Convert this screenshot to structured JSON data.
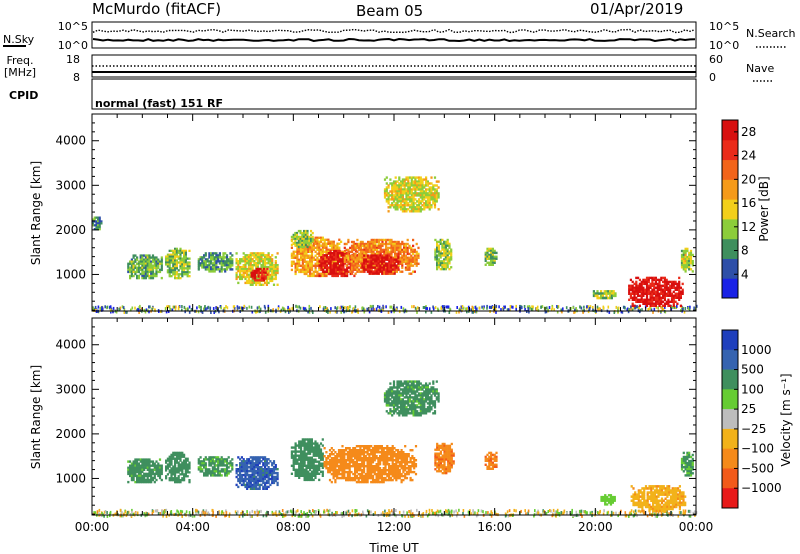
{
  "header": {
    "station": "McMurdo (fitACF)",
    "beam": "Beam 05",
    "date": "01/Apr/2019"
  },
  "top_panels": {
    "nsky_label": "N.Sky",
    "nsky_tick_top": "10^5",
    "nsky_tick_bottom": "10^0",
    "nsearch_label": "N.Search",
    "nsearch_tick_top": "10^5",
    "nsearch_tick_bottom": "10^0",
    "freq_label_line1": "Freq.",
    "freq_label_line2": "[MHz]",
    "freq_tick_top": "18",
    "freq_tick_bottom": "8",
    "nave_label": "Nave",
    "nave_tick_top": "60",
    "nave_tick_bottom": "0",
    "cpid_label": "CPID",
    "cpid_text": "normal (fast) 151 RF"
  },
  "colors": {
    "power": [
      "#1a22e6",
      "#2e4fa8",
      "#3f8f5e",
      "#8ccd3a",
      "#f2cf1a",
      "#f59a1a",
      "#f2641a",
      "#ea2b1a",
      "#d80f0f"
    ],
    "velocity": [
      "#1f3fbd",
      "#3563b0",
      "#3f8f5e",
      "#66cc33",
      "#bdbdbd",
      "#f2b21a",
      "#f58a1a",
      "#f25a1a",
      "#e81a1a"
    ]
  },
  "chart_data": [
    {
      "type": "heatmap",
      "name": "power",
      "title": "",
      "xlabel": "",
      "ylabel": "Slant Range [km]",
      "x_ticks": [
        "00:00",
        "04:00",
        "08:00",
        "12:00",
        "16:00",
        "20:00",
        "00:00"
      ],
      "xlim_hours": [
        0,
        24
      ],
      "ylim_km": [
        180,
        4600
      ],
      "y_ticks": [
        1000,
        2000,
        3000,
        4000
      ],
      "colorbar": {
        "label": "Power [dB]",
        "ticks": [
          4,
          8,
          12,
          16,
          20,
          24,
          28
        ],
        "range": [
          0,
          30
        ]
      },
      "regions": [
        {
          "t0": 1.4,
          "t1": 2.8,
          "r0": 900,
          "r1": 1450,
          "value": 10
        },
        {
          "t0": 2.9,
          "t1": 3.9,
          "r0": 900,
          "r1": 1600,
          "value": 12
        },
        {
          "t0": 4.2,
          "t1": 5.6,
          "r0": 1050,
          "r1": 1500,
          "value": 9
        },
        {
          "t0": 5.7,
          "t1": 7.4,
          "r0": 750,
          "r1": 1500,
          "value": 14
        },
        {
          "t0": 6.3,
          "t1": 7.0,
          "r0": 850,
          "r1": 1150,
          "value": 27
        },
        {
          "t0": 7.9,
          "t1": 10.0,
          "r0": 950,
          "r1": 1850,
          "value": 18
        },
        {
          "t0": 9.0,
          "t1": 10.6,
          "r0": 950,
          "r1": 1550,
          "value": 27
        },
        {
          "t0": 10.0,
          "t1": 13.0,
          "r0": 1000,
          "r1": 1800,
          "value": 20
        },
        {
          "t0": 10.7,
          "t1": 12.2,
          "r0": 1000,
          "r1": 1450,
          "value": 28
        },
        {
          "t0": 13.6,
          "t1": 14.3,
          "r0": 1100,
          "r1": 1800,
          "value": 12
        },
        {
          "t0": 15.6,
          "t1": 16.1,
          "r0": 1200,
          "r1": 1600,
          "value": 11
        },
        {
          "t0": 21.3,
          "t1": 23.5,
          "r0": 280,
          "r1": 950,
          "value": 28
        },
        {
          "t0": 23.4,
          "t1": 23.9,
          "r0": 1050,
          "r1": 1600,
          "value": 13
        },
        {
          "t0": 0.0,
          "t1": 0.4,
          "r0": 2000,
          "r1": 2300,
          "value": 8
        },
        {
          "t0": 11.6,
          "t1": 13.8,
          "r0": 2400,
          "r1": 3200,
          "value": 14
        },
        {
          "t0": 7.9,
          "t1": 8.8,
          "r0": 1600,
          "r1": 2000,
          "value": 12
        },
        {
          "t0": 19.9,
          "t1": 20.9,
          "r0": 450,
          "r1": 650,
          "value": 12
        }
      ]
    },
    {
      "type": "heatmap",
      "name": "velocity",
      "title": "",
      "xlabel": "Time UT",
      "ylabel": "Slant Range [km]",
      "x_ticks": [
        "00:00",
        "04:00",
        "08:00",
        "12:00",
        "16:00",
        "20:00",
        "00:00"
      ],
      "xlim_hours": [
        0,
        24
      ],
      "ylim_km": [
        180,
        4600
      ],
      "y_ticks": [
        1000,
        2000,
        3000,
        4000
      ],
      "colorbar": {
        "label": "Velocity [m s⁻¹]",
        "ticks": [
          "1000",
          "500",
          "100",
          "25",
          "−25",
          "−100",
          "−500",
          "−1000"
        ]
      },
      "regions": [
        {
          "t0": 1.4,
          "t1": 2.8,
          "r0": 900,
          "r1": 1450,
          "value": 150
        },
        {
          "t0": 2.9,
          "t1": 3.9,
          "r0": 900,
          "r1": 1600,
          "value": 200
        },
        {
          "t0": 4.2,
          "t1": 5.6,
          "r0": 1050,
          "r1": 1500,
          "value": 120
        },
        {
          "t0": 5.7,
          "t1": 7.4,
          "r0": 750,
          "r1": 1500,
          "value": 800
        },
        {
          "t0": 7.9,
          "t1": 9.2,
          "r0": 950,
          "r1": 1900,
          "value": 300
        },
        {
          "t0": 9.2,
          "t1": 12.9,
          "r0": 900,
          "r1": 1750,
          "value": -300
        },
        {
          "t0": 13.6,
          "t1": 14.4,
          "r0": 1100,
          "r1": 1800,
          "value": -400
        },
        {
          "t0": 15.6,
          "t1": 16.1,
          "r0": 1200,
          "r1": 1600,
          "value": -400
        },
        {
          "t0": 21.4,
          "t1": 23.6,
          "r0": 250,
          "r1": 850,
          "value": -80
        },
        {
          "t0": 23.4,
          "t1": 23.9,
          "r0": 1050,
          "r1": 1600,
          "value": 120
        },
        {
          "t0": 11.6,
          "t1": 13.8,
          "r0": 2400,
          "r1": 3200,
          "value": 150
        },
        {
          "t0": 20.2,
          "t1": 20.8,
          "r0": 400,
          "r1": 650,
          "value": 60
        }
      ]
    }
  ]
}
